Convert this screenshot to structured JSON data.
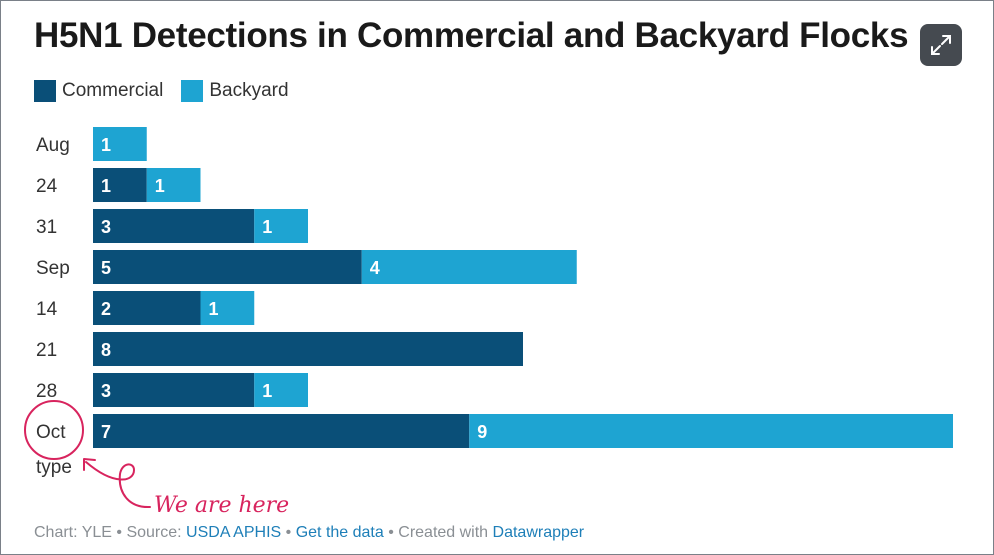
{
  "title": "H5N1 Detections in Commercial and Backyard Flocks",
  "colors": {
    "commercial": "#0a4f78",
    "backyard": "#1ea4d2",
    "annotation": "#d8245e"
  },
  "expand_icon": "expand-arrows-icon",
  "chart_data": {
    "type": "bar",
    "orientation": "horizontal",
    "stacked": true,
    "title": "H5N1 Detections in Commercial and Backyard Flocks",
    "categories": [
      "Aug",
      "24",
      "31",
      "Sep",
      "14",
      "21",
      "28",
      "Oct"
    ],
    "series": [
      {
        "name": "Commercial",
        "values": [
          0,
          1,
          3,
          5,
          2,
          8,
          3,
          7
        ]
      },
      {
        "name": "Backyard",
        "values": [
          1,
          1,
          1,
          4,
          1,
          0,
          1,
          9
        ]
      }
    ],
    "extra_row_label": "type",
    "legend": "top-left",
    "grid": false
  },
  "annotation": {
    "text": "We are here",
    "target_category": "Oct"
  },
  "caption": {
    "prefix": "Chart: YLE • Source: ",
    "source": "USDA APHIS",
    "sep1": " • ",
    "get_data": "Get the data",
    "sep2": " • Created with ",
    "tool": "Datawrapper"
  }
}
